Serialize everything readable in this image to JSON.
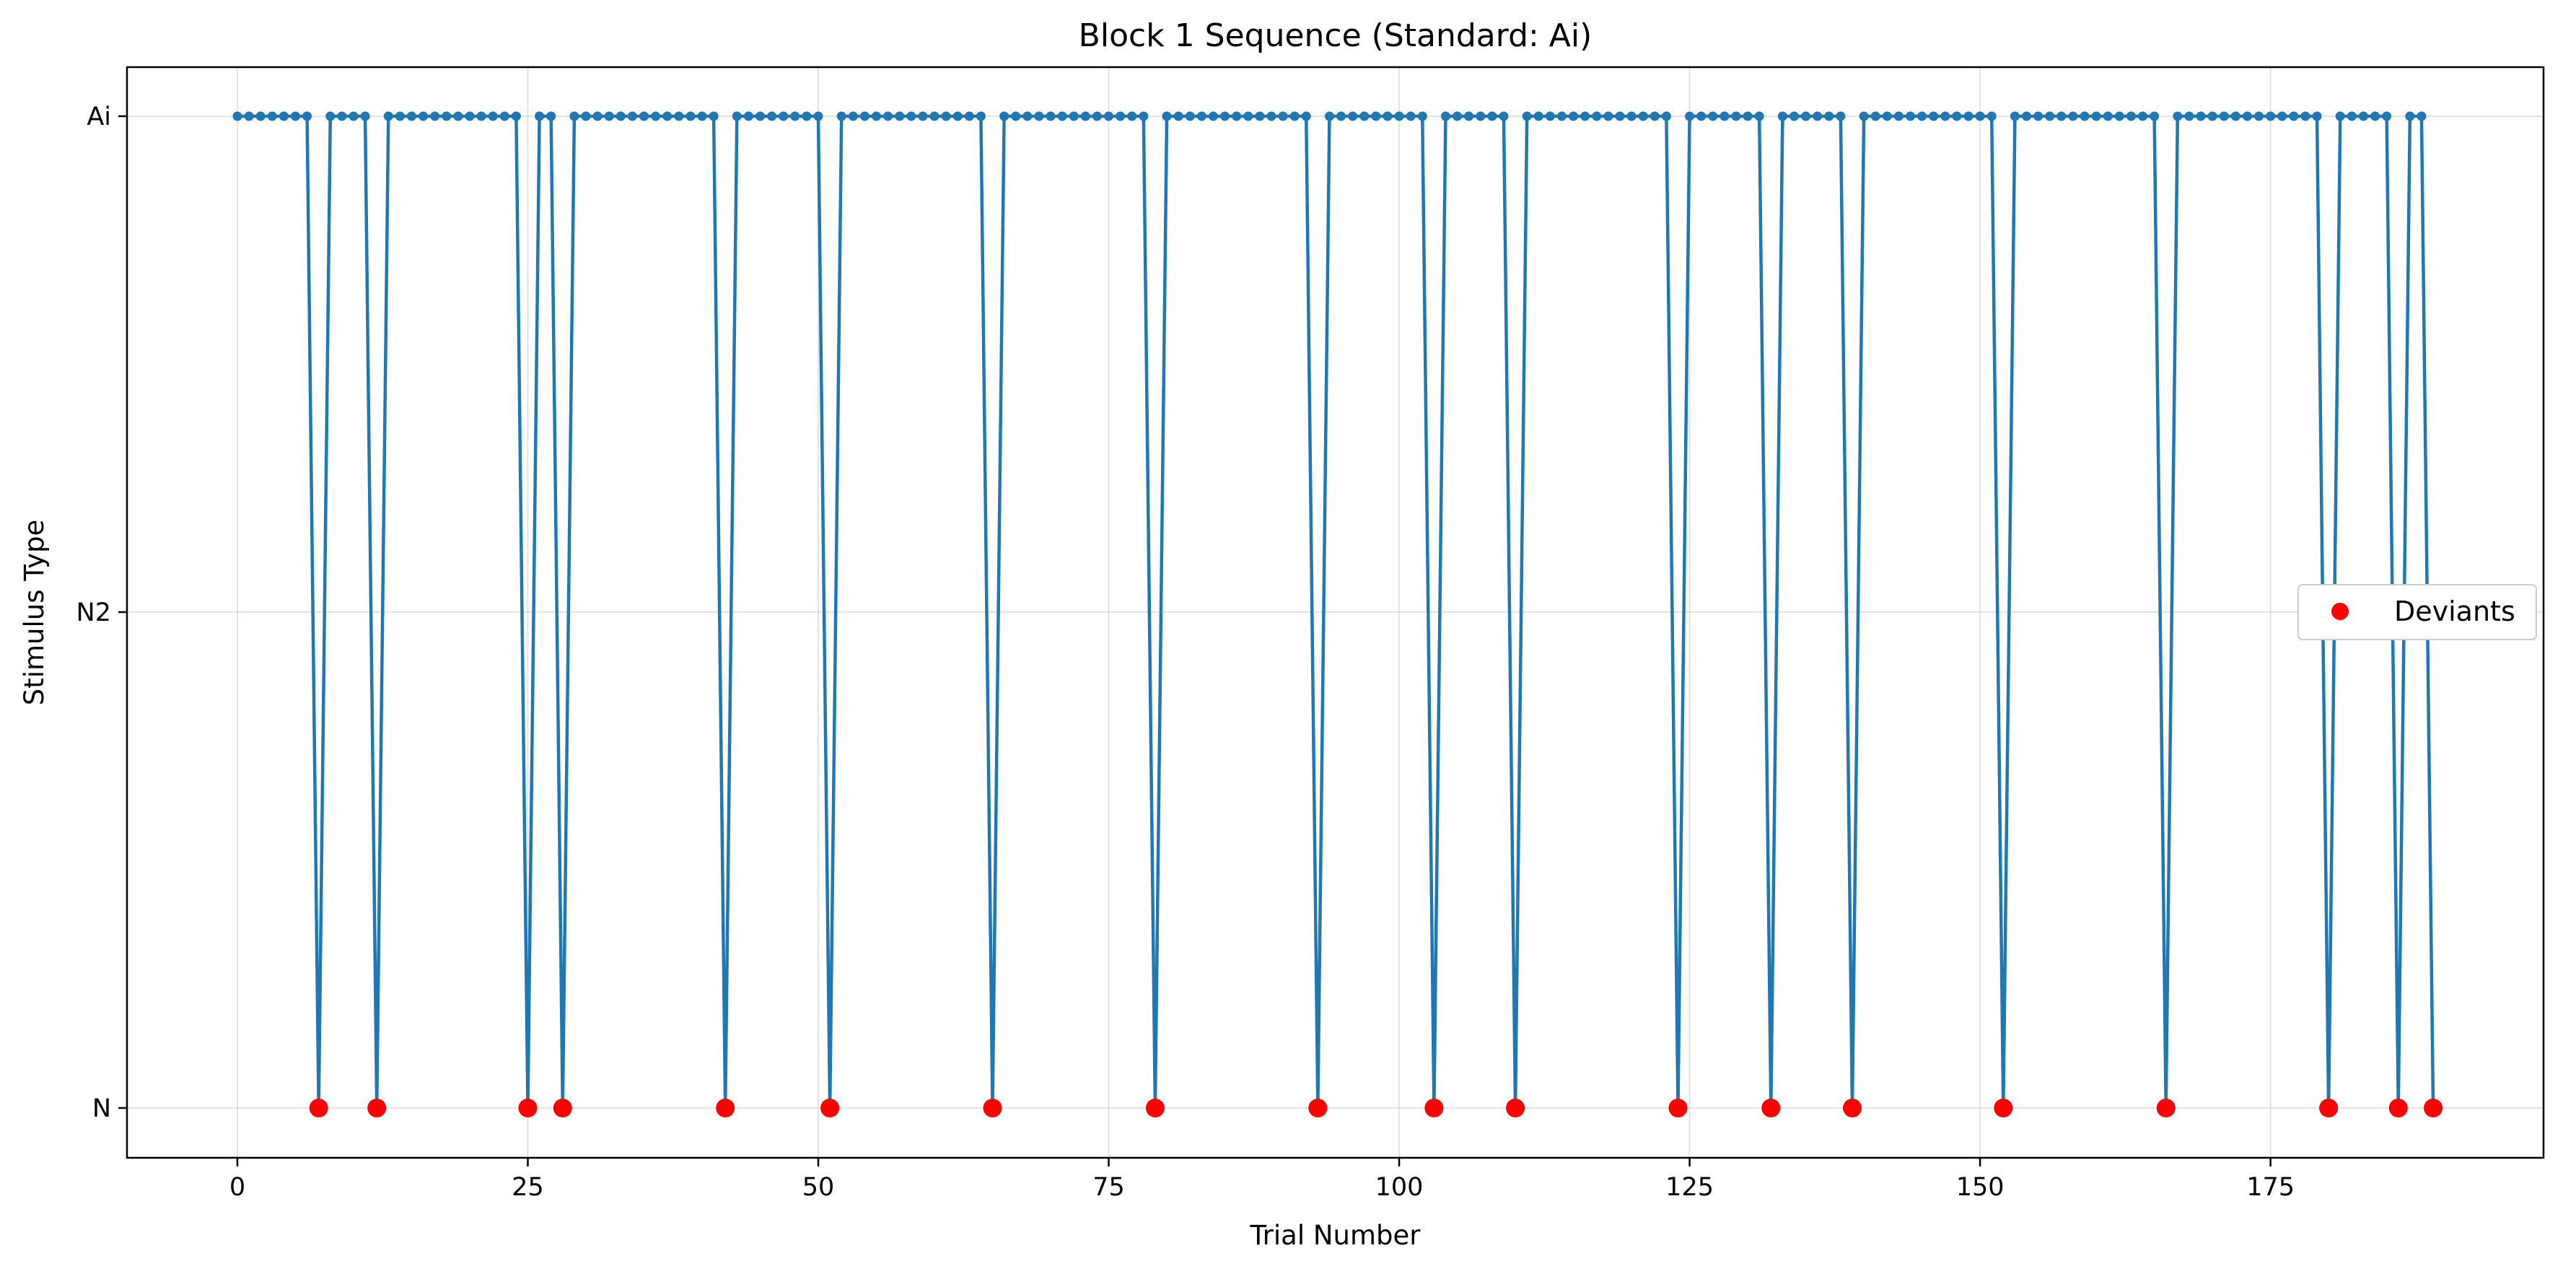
{
  "chart_data": {
    "type": "line",
    "title": "Block 1 Sequence (Standard: Ai)",
    "xlabel": "Trial Number",
    "ylabel": "Stimulus Type",
    "xlim": [
      -9.5,
      198.5
    ],
    "x_ticks": [
      0,
      25,
      50,
      75,
      100,
      125,
      150,
      175
    ],
    "y_categories": [
      "N",
      "N2",
      "Ai"
    ],
    "grid": true,
    "legend_position": "center-right",
    "n_trials": 190,
    "standard_category": "Ai",
    "series": [
      {
        "name": "",
        "color": "#1f77b4",
        "marker": "small dot",
        "x_start": 0,
        "x_end": 189,
        "baseline": "Ai",
        "deviant_value": "N"
      },
      {
        "name": "Deviants",
        "color": "#ff0000",
        "marker": "circle",
        "y": "N",
        "x": [
          7,
          12,
          25,
          28,
          42,
          51,
          65,
          79,
          93,
          103,
          110,
          124,
          132,
          139,
          152,
          166,
          180,
          186,
          189
        ]
      }
    ]
  }
}
